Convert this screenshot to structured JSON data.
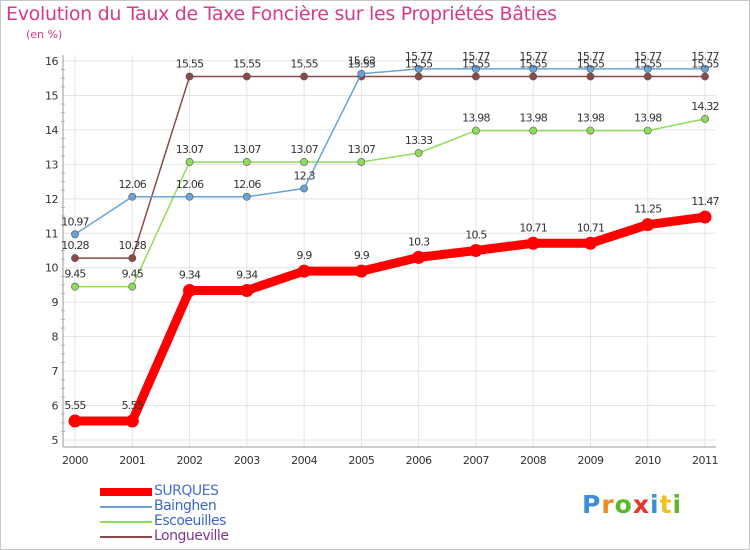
{
  "chart_data": {
    "type": "line",
    "title": "Evolution du Taux de Taxe Foncière sur les Propriétés Bâties",
    "ylabel": "(en %)",
    "xlabel": "",
    "ylim": [
      5,
      16
    ],
    "yticks": [
      "5",
      "6",
      "7",
      "8",
      "9",
      "10",
      "11",
      "12",
      "13",
      "14",
      "15",
      "16"
    ],
    "categories": [
      "2000",
      "2001",
      "2002",
      "2003",
      "2004",
      "2005",
      "2006",
      "2007",
      "2008",
      "2009",
      "2010",
      "2011"
    ],
    "series": [
      {
        "name": "SURQUES",
        "color": "#ff0000",
        "values": [
          5.55,
          5.55,
          9.34,
          9.34,
          9.9,
          9.9,
          10.3,
          10.5,
          10.71,
          10.71,
          11.25,
          11.47
        ],
        "labels": [
          "5.55",
          "5.55",
          "9.34",
          "9.34",
          "9.9",
          "9.9",
          "10.3",
          "10.5",
          "10.71",
          "10.71",
          "11.25",
          "11.47"
        ]
      },
      {
        "name": "Bainghen",
        "color": "#6aa3d5",
        "values": [
          10.97,
          12.06,
          12.06,
          12.06,
          12.3,
          15.63,
          15.77,
          15.77,
          15.77,
          15.77,
          15.77,
          15.77
        ],
        "labels": [
          "10.97",
          "12.06",
          "12.06",
          "12.06",
          "12.3",
          "15.63",
          "15.77",
          "15.77",
          "15.77",
          "15.77",
          "15.77",
          "15.77"
        ]
      },
      {
        "name": "Escoeuilles",
        "color": "#8fdc5a",
        "values": [
          9.45,
          9.45,
          13.07,
          13.07,
          13.07,
          13.07,
          13.33,
          13.98,
          13.98,
          13.98,
          13.98,
          14.32
        ],
        "labels": [
          "9.45",
          "9.45",
          "13.07",
          "13.07",
          "13.07",
          "13.07",
          "13.33",
          "13.98",
          "13.98",
          "13.98",
          "13.98",
          "14.32"
        ]
      },
      {
        "name": "Longueville",
        "color": "#8b4a4a",
        "values": [
          10.28,
          10.28,
          15.55,
          15.55,
          15.55,
          15.55,
          15.55,
          15.55,
          15.55,
          15.55,
          15.55,
          15.55
        ],
        "labels": [
          "10.28",
          "10.28",
          "15.55",
          "15.55",
          "15.55",
          "15.55",
          "15.55",
          "15.55",
          "15.55",
          "15.55",
          "15.55",
          "15.55"
        ]
      }
    ],
    "legend_position": "bottom-left",
    "grid": true
  },
  "logo": {
    "letters": [
      "P",
      "r",
      "o",
      "x",
      "i",
      "t",
      "i"
    ],
    "colors": [
      "#3a8fd8",
      "#f08a24",
      "#5cb82a",
      "#e8342a",
      "#3a8fd8",
      "#f0c020",
      "#5cb82a"
    ]
  }
}
